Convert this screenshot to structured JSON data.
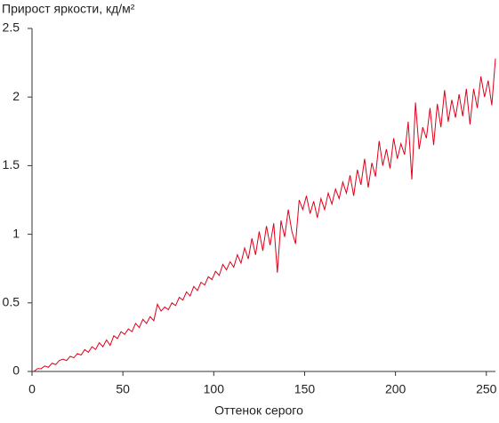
{
  "chart_data": {
    "type": "line",
    "title": "Прирост яркости, кд/м²",
    "x_label": "Оттенок серого",
    "x": [
      1,
      3,
      5,
      7,
      9,
      11,
      13,
      15,
      17,
      19,
      21,
      23,
      25,
      27,
      29,
      31,
      33,
      35,
      37,
      39,
      41,
      43,
      45,
      47,
      49,
      51,
      53,
      55,
      57,
      59,
      61,
      63,
      65,
      67,
      69,
      71,
      73,
      75,
      77,
      79,
      81,
      83,
      85,
      87,
      89,
      91,
      93,
      95,
      97,
      99,
      101,
      103,
      105,
      107,
      109,
      111,
      113,
      115,
      117,
      119,
      121,
      123,
      125,
      127,
      129,
      131,
      133,
      135,
      137,
      139,
      141,
      143,
      145,
      147,
      149,
      151,
      153,
      155,
      157,
      159,
      161,
      163,
      165,
      167,
      169,
      171,
      173,
      175,
      177,
      179,
      181,
      183,
      185,
      187,
      189,
      191,
      193,
      195,
      197,
      199,
      201,
      203,
      205,
      207,
      209,
      211,
      213,
      215,
      217,
      219,
      221,
      223,
      225,
      227,
      229,
      231,
      233,
      235,
      237,
      239,
      241,
      243,
      245,
      247,
      249,
      251,
      253,
      255
    ],
    "series": [
      {
        "color": "#e0001a",
        "values": [
          0.0,
          0.02,
          0.02,
          0.04,
          0.03,
          0.06,
          0.05,
          0.08,
          0.09,
          0.08,
          0.11,
          0.1,
          0.13,
          0.12,
          0.16,
          0.14,
          0.18,
          0.16,
          0.21,
          0.18,
          0.23,
          0.19,
          0.26,
          0.24,
          0.29,
          0.27,
          0.31,
          0.29,
          0.35,
          0.32,
          0.38,
          0.35,
          0.4,
          0.37,
          0.49,
          0.44,
          0.47,
          0.45,
          0.5,
          0.48,
          0.54,
          0.52,
          0.58,
          0.55,
          0.62,
          0.59,
          0.65,
          0.63,
          0.69,
          0.67,
          0.73,
          0.7,
          0.78,
          0.74,
          0.8,
          0.76,
          0.85,
          0.79,
          0.9,
          0.82,
          0.97,
          0.85,
          1.02,
          0.88,
          1.06,
          0.92,
          1.08,
          0.72,
          1.1,
          0.98,
          1.18,
          1.02,
          0.93,
          1.25,
          1.18,
          1.28,
          1.15,
          1.24,
          1.12,
          1.26,
          1.18,
          1.3,
          1.22,
          1.33,
          1.26,
          1.38,
          1.3,
          1.43,
          1.28,
          1.47,
          1.36,
          1.55,
          1.34,
          1.52,
          1.42,
          1.68,
          1.5,
          1.62,
          1.48,
          1.7,
          1.55,
          1.66,
          1.58,
          1.82,
          1.4,
          1.96,
          1.62,
          1.78,
          1.7,
          1.92,
          1.65,
          1.95,
          1.78,
          2.05,
          1.82,
          1.98,
          1.85,
          2.02,
          1.86,
          2.06,
          1.8,
          2.06,
          1.92,
          2.15,
          2.0,
          2.12,
          1.94,
          2.28
        ]
      }
    ],
    "xlim": [
      0,
      255
    ],
    "ylim": [
      0,
      2.5
    ],
    "xticks": [
      0,
      50,
      100,
      150,
      200,
      250
    ],
    "yticks": [
      0,
      0.5,
      1,
      1.5,
      2,
      2.5
    ]
  }
}
